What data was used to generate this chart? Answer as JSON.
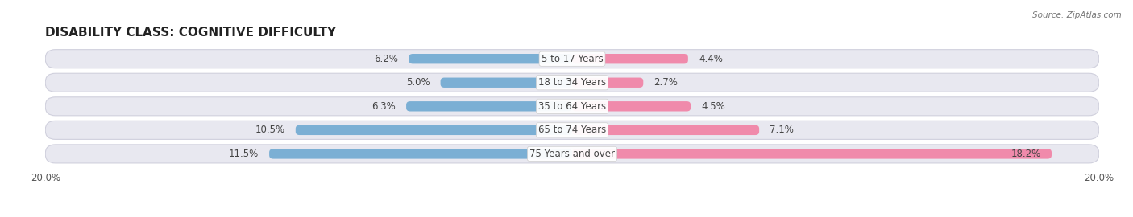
{
  "title": "DISABILITY CLASS: COGNITIVE DIFFICULTY",
  "source": "Source: ZipAtlas.com",
  "categories": [
    "5 to 17 Years",
    "18 to 34 Years",
    "35 to 64 Years",
    "65 to 74 Years",
    "75 Years and over"
  ],
  "male_values": [
    6.2,
    5.0,
    6.3,
    10.5,
    11.5
  ],
  "female_values": [
    4.4,
    2.7,
    4.5,
    7.1,
    18.2
  ],
  "male_color": "#7bafd4",
  "female_color": "#f08aab",
  "row_bg_color": "#e8e8f0",
  "row_border_color": "#d0d0dd",
  "xlim": 20.0,
  "title_fontsize": 11,
  "label_fontsize": 8.5,
  "value_fontsize": 8.5,
  "tick_fontsize": 8.5,
  "legend_fontsize": 9,
  "bg_color": "#ffffff",
  "text_color": "#444444",
  "title_color": "#222222"
}
